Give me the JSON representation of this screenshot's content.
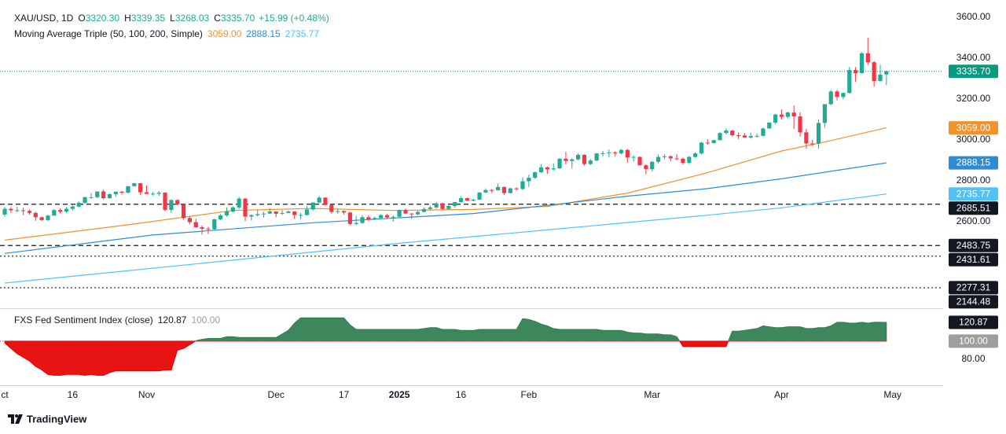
{
  "chart_data": [
    {
      "type": "candlestick",
      "title": "XAU/USD, 1D",
      "legend": [
        {
          "key": "O",
          "label": "3320.30"
        },
        {
          "key": "H",
          "label": "3339.35"
        },
        {
          "key": "L",
          "label": "3268.03"
        },
        {
          "key": "C",
          "label": "3335.70"
        }
      ],
      "change_label": "+15.99 (+0.48%)",
      "up_color": "#22ab94",
      "down_color": "#f23645",
      "xlim": [
        0.5,
        152.2
      ],
      "xticks": [
        {
          "value": 0,
          "label": "ct"
        },
        {
          "value": 11,
          "label": "16"
        },
        {
          "value": 23,
          "label": "Nov"
        },
        {
          "value": 44,
          "label": "Dec"
        },
        {
          "value": 55,
          "label": "17"
        },
        {
          "value": 64,
          "label": "2025",
          "bold": true
        },
        {
          "value": 74,
          "label": "16"
        },
        {
          "value": 85,
          "label": "Feb"
        },
        {
          "value": 105,
          "label": "Mar"
        },
        {
          "value": 126,
          "label": "Apr"
        },
        {
          "value": 144,
          "label": "May"
        }
      ],
      "ylim": [
        2177,
        3646
      ],
      "yticks": [
        {
          "value": 2600,
          "label": "2600.00"
        },
        {
          "value": 2800,
          "label": "2800.00"
        },
        {
          "value": 3000,
          "label": "3000.00"
        },
        {
          "value": 3200,
          "label": "3200.00"
        },
        {
          "value": 3400,
          "label": "3400.00"
        },
        {
          "value": 3600,
          "label": "3600.00"
        }
      ],
      "candles": [
        [
          2635,
          2672,
          2625,
          2663
        ],
        [
          2663,
          2672,
          2642,
          2656
        ],
        [
          2656,
          2673,
          2647,
          2656
        ],
        [
          2656,
          2670,
          2633,
          2653
        ],
        [
          2653,
          2660,
          2635,
          2643
        ],
        [
          2643,
          2649,
          2605,
          2622
        ],
        [
          2622,
          2625,
          2604,
          2608
        ],
        [
          2608,
          2634,
          2603,
          2630
        ],
        [
          2630,
          2661,
          2629,
          2657
        ],
        [
          2657,
          2666,
          2640,
          2649
        ],
        [
          2649,
          2672,
          2643,
          2663
        ],
        [
          2663,
          2680,
          2655,
          2674
        ],
        [
          2674,
          2700,
          2670,
          2692
        ],
        [
          2692,
          2722,
          2687,
          2720
        ],
        [
          2720,
          2740,
          2712,
          2720
        ],
        [
          2720,
          2748,
          2715,
          2748
        ],
        [
          2748,
          2758,
          2709,
          2715
        ],
        [
          2715,
          2737,
          2713,
          2735
        ],
        [
          2735,
          2747,
          2722,
          2747
        ],
        [
          2747,
          2749,
          2732,
          2742
        ],
        [
          2742,
          2773,
          2738,
          2774
        ],
        [
          2774,
          2790,
          2772,
          2788
        ],
        [
          2788,
          2790,
          2730,
          2744
        ],
        [
          2744,
          2777,
          2736,
          2736
        ],
        [
          2736,
          2746,
          2728,
          2737
        ],
        [
          2737,
          2750,
          2727,
          2742
        ],
        [
          2742,
          2745,
          2652,
          2658
        ],
        [
          2658,
          2710,
          2643,
          2706
        ],
        [
          2706,
          2710,
          2680,
          2685
        ],
        [
          2685,
          2689,
          2610,
          2618
        ],
        [
          2618,
          2627,
          2589,
          2598
        ],
        [
          2598,
          2615,
          2572,
          2573
        ],
        [
          2573,
          2582,
          2537,
          2566
        ],
        [
          2566,
          2575,
          2540,
          2563
        ],
        [
          2563,
          2614,
          2560,
          2612
        ],
        [
          2612,
          2638,
          2608,
          2631
        ],
        [
          2631,
          2670,
          2625,
          2650
        ],
        [
          2650,
          2675,
          2645,
          2670
        ],
        [
          2670,
          2721,
          2662,
          2713
        ],
        [
          2713,
          2716,
          2603,
          2625
        ],
        [
          2625,
          2636,
          2605,
          2632
        ],
        [
          2632,
          2658,
          2625,
          2637
        ],
        [
          2637,
          2649,
          2620,
          2640
        ],
        [
          2640,
          2665,
          2638,
          2650
        ],
        [
          2650,
          2651,
          2622,
          2639
        ],
        [
          2639,
          2657,
          2633,
          2643
        ],
        [
          2643,
          2656,
          2642,
          2650
        ],
        [
          2650,
          2652,
          2613,
          2633
        ],
        [
          2633,
          2644,
          2613,
          2633
        ],
        [
          2633,
          2676,
          2630,
          2660
        ],
        [
          2660,
          2695,
          2655,
          2694
        ],
        [
          2694,
          2726,
          2690,
          2718
        ],
        [
          2718,
          2720,
          2680,
          2682
        ],
        [
          2682,
          2686,
          2640,
          2648
        ],
        [
          2648,
          2664,
          2640,
          2652
        ],
        [
          2652,
          2655,
          2635,
          2645
        ],
        [
          2645,
          2648,
          2583,
          2589
        ],
        [
          2589,
          2628,
          2583,
          2594
        ],
        [
          2594,
          2632,
          2590,
          2622
        ],
        [
          2622,
          2631,
          2603,
          2612
        ],
        [
          2612,
          2625,
          2607,
          2618
        ],
        [
          2618,
          2637,
          2614,
          2632
        ],
        [
          2632,
          2638,
          2618,
          2621
        ],
        [
          2621,
          2630,
          2600,
          2624
        ],
        [
          2624,
          2660,
          2622,
          2657
        ],
        [
          2657,
          2665,
          2636,
          2640
        ],
        [
          2640,
          2643,
          2614,
          2636
        ],
        [
          2636,
          2653,
          2630,
          2648
        ],
        [
          2648,
          2670,
          2645,
          2662
        ],
        [
          2662,
          2678,
          2655,
          2670
        ],
        [
          2670,
          2697,
          2663,
          2690
        ],
        [
          2690,
          2693,
          2656,
          2662
        ],
        [
          2662,
          2680,
          2660,
          2677
        ],
        [
          2677,
          2697,
          2669,
          2696
        ],
        [
          2696,
          2724,
          2694,
          2715
        ],
        [
          2715,
          2718,
          2702,
          2703
        ],
        [
          2703,
          2712,
          2700,
          2708
        ],
        [
          2708,
          2745,
          2705,
          2743
        ],
        [
          2743,
          2763,
          2741,
          2755
        ],
        [
          2755,
          2760,
          2740,
          2754
        ],
        [
          2754,
          2787,
          2752,
          2770
        ],
        [
          2770,
          2772,
          2731,
          2740
        ],
        [
          2740,
          2766,
          2738,
          2763
        ],
        [
          2763,
          2768,
          2752,
          2760
        ],
        [
          2760,
          2817,
          2756,
          2798
        ],
        [
          2798,
          2830,
          2770,
          2815
        ],
        [
          2815,
          2845,
          2810,
          2842
        ],
        [
          2842,
          2882,
          2838,
          2866
        ],
        [
          2866,
          2870,
          2835,
          2856
        ],
        [
          2856,
          2886,
          2850,
          2861
        ],
        [
          2861,
          2911,
          2858,
          2908
        ],
        [
          2908,
          2942,
          2880,
          2897
        ],
        [
          2897,
          2910,
          2860,
          2905
        ],
        [
          2905,
          2935,
          2900,
          2927
        ],
        [
          2927,
          2930,
          2874,
          2882
        ],
        [
          2882,
          2907,
          2877,
          2899
        ],
        [
          2899,
          2936,
          2897,
          2934
        ],
        [
          2934,
          2947,
          2920,
          2935
        ],
        [
          2935,
          2954,
          2915,
          2939
        ],
        [
          2939,
          2944,
          2920,
          2935
        ],
        [
          2935,
          2956,
          2930,
          2951
        ],
        [
          2951,
          2956,
          2890,
          2914
        ],
        [
          2914,
          2925,
          2894,
          2917
        ],
        [
          2917,
          2920,
          2875,
          2876
        ],
        [
          2876,
          2882,
          2832,
          2857
        ],
        [
          2857,
          2896,
          2845,
          2893
        ],
        [
          2893,
          2928,
          2885,
          2917
        ],
        [
          2917,
          2930,
          2905,
          2920
        ],
        [
          2920,
          2925,
          2896,
          2910
        ],
        [
          2910,
          2930,
          2900,
          2908
        ],
        [
          2908,
          2914,
          2880,
          2888
        ],
        [
          2888,
          2922,
          2882,
          2917
        ],
        [
          2917,
          2940,
          2912,
          2934
        ],
        [
          2934,
          2990,
          2929,
          2987
        ],
        [
          2987,
          3004,
          2977,
          2985
        ],
        [
          2985,
          3000,
          2982,
          2999
        ],
        [
          2999,
          3038,
          2998,
          3034
        ],
        [
          3034,
          3057,
          3027,
          3046
        ],
        [
          3046,
          3048,
          3017,
          3023
        ],
        [
          3023,
          3036,
          3004,
          3022
        ],
        [
          3022,
          3034,
          3011,
          3012
        ],
        [
          3012,
          3036,
          3006,
          3019
        ],
        [
          3019,
          3032,
          3012,
          3020
        ],
        [
          3020,
          3060,
          3018,
          3056
        ],
        [
          3056,
          3086,
          3055,
          3085
        ],
        [
          3085,
          3128,
          3076,
          3124
        ],
        [
          3124,
          3149,
          3100,
          3113
        ],
        [
          3113,
          3138,
          3105,
          3134
        ],
        [
          3134,
          3168,
          3054,
          3115
        ],
        [
          3115,
          3135,
          3016,
          3037
        ],
        [
          3037,
          3055,
          2957,
          2983
        ],
        [
          2983,
          3000,
          2970,
          2982
        ],
        [
          2982,
          3100,
          2957,
          3083
        ],
        [
          3083,
          3175,
          3060,
          3175
        ],
        [
          3175,
          3245,
          3170,
          3237
        ],
        [
          3237,
          3245,
          3193,
          3210
        ],
        [
          3210,
          3230,
          3200,
          3230
        ],
        [
          3230,
          3357,
          3227,
          3342
        ],
        [
          3342,
          3357,
          3284,
          3327
        ],
        [
          3327,
          3430,
          3325,
          3424
        ],
        [
          3424,
          3500,
          3367,
          3380
        ],
        [
          3380,
          3386,
          3260,
          3288
        ],
        [
          3288,
          3368,
          3286,
          3319.71
        ],
        [
          3320.3,
          3339.35,
          3268.03,
          3335.7
        ]
      ],
      "price_line_color": "#089981",
      "indicator": {
        "title": "Moving Average Triple (50, 100, 200, Simple)",
        "series": [
          {
            "color": "#f0932b",
            "last_label": "3059.00",
            "x": [
              0,
              20,
              37,
              50,
              63,
              76,
              88,
              101,
              114,
              126,
              133,
              143
            ],
            "values": [
              2510,
              2585,
              2655,
              2665,
              2655,
              2660,
              2675,
              2740,
              2840,
              2946,
              2990,
              3059
            ]
          },
          {
            "color": "#2e8bd6",
            "last_label": "2888.15",
            "x": [
              0,
              24,
              50,
              76,
              88,
              101,
              114,
              126,
              143
            ],
            "values": [
              2445,
              2535,
              2595,
              2640,
              2680,
              2725,
              2762,
              2810,
              2888.15
            ]
          },
          {
            "color": "#4fc3f7",
            "last_label": "2735.77",
            "x": [
              0,
              37,
              63,
              88,
              114,
              126,
              143
            ],
            "values": [
              2300,
              2412,
              2492,
              2560,
              2632,
              2668,
              2735.77
            ]
          }
        ]
      },
      "price_lines": [
        {
          "value": 2685.51,
          "label": "2685.51",
          "style": "dashed"
        },
        {
          "value": 2483.75,
          "label": "2483.75",
          "style": "dashed"
        },
        {
          "value": 2431.61,
          "label": "2431.61",
          "style": "dotted"
        },
        {
          "value": 2277.31,
          "label": "2277.31",
          "style": "dotted"
        },
        {
          "value": 2144.48,
          "label": "2144.48",
          "style": "dotted"
        }
      ]
    },
    {
      "type": "area",
      "title": "FXS Fed Sentiment Index (close)",
      "last_label": "120.87",
      "up_color": "#2e7d4f",
      "down_color": "#e60000",
      "baseline": {
        "value": 100,
        "label": "100.00"
      },
      "ylim": [
        51,
        134
      ],
      "yticks": [
        {
          "value": 80,
          "label": "80.00"
        }
      ],
      "values": [
        98,
        92,
        86,
        82,
        78,
        72,
        68,
        63,
        62,
        62,
        63,
        63,
        63,
        62,
        63,
        62,
        62,
        65,
        67,
        67,
        67,
        67,
        67,
        67,
        67,
        67,
        68,
        68,
        90,
        92,
        96,
        100.5,
        102,
        103,
        103,
        103,
        105,
        105,
        104,
        104,
        104,
        104,
        104,
        104,
        104,
        108,
        112,
        120,
        126,
        126,
        126,
        126,
        126,
        126,
        126,
        126,
        118,
        113,
        113,
        113,
        113,
        113,
        113,
        113,
        113,
        113,
        113,
        113,
        114,
        115,
        115,
        113,
        113,
        113,
        112,
        112,
        112,
        113,
        113,
        113,
        113,
        113,
        113,
        113,
        125,
        124,
        122,
        119,
        117,
        114,
        113,
        113,
        113,
        113,
        113,
        113,
        113,
        112,
        112,
        112,
        112,
        110,
        109,
        109,
        108,
        108,
        108,
        107,
        107,
        105,
        94,
        94,
        94,
        94,
        94,
        94,
        94,
        94,
        111,
        111,
        112,
        113,
        114,
        117,
        116,
        115,
        115,
        116,
        116,
        116,
        114,
        114,
        115,
        115,
        117,
        121,
        121,
        120,
        120,
        121,
        120,
        121,
        121,
        120.87
      ]
    }
  ],
  "footer": {
    "brand": "TradingView"
  }
}
